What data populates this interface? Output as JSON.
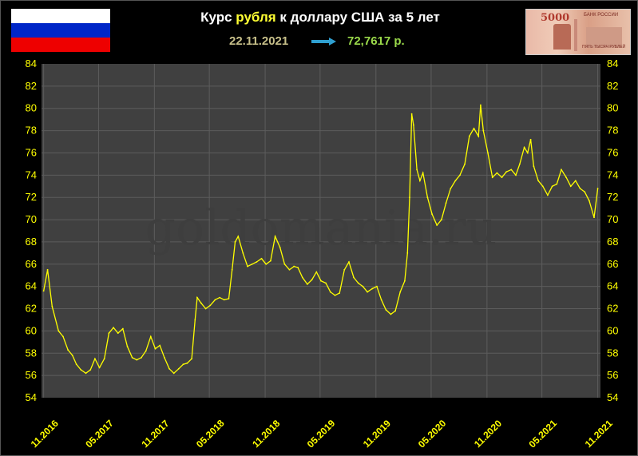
{
  "header": {
    "title_prefix": "Курс ",
    "title_highlight": "рубля",
    "title_suffix": " к доллару США за 5 лет",
    "date": "22.11.2021",
    "value": "72,7617 р."
  },
  "flag_colors": [
    "#ffffff",
    "#0026c8",
    "#ee0000"
  ],
  "banknote": {
    "denomination": "5000",
    "bank_text": "БАНК РОССИИ",
    "small_text": "ПЯТЬ ТЫСЯЧ РУБЛЕЙ"
  },
  "watermark": "goldomania.ru",
  "chart_data": {
    "type": "line",
    "title": "Курс рубля к доллару США за 5 лет",
    "ylim": [
      54,
      84
    ],
    "yticks": [
      54,
      56,
      58,
      60,
      62,
      64,
      66,
      68,
      70,
      72,
      74,
      76,
      78,
      80,
      82,
      84
    ],
    "xticks": [
      "11.2016",
      "05.2017",
      "11.2017",
      "05.2018",
      "11.2018",
      "05.2019",
      "11.2019",
      "05.2020",
      "11.2020",
      "05.2021",
      "11.2021"
    ],
    "grid": true,
    "line_color": "#ffff00",
    "series": [
      {
        "x": [
          "2016-11-22",
          "2016-12-05",
          "2016-12-20",
          "2017-01-10",
          "2017-01-25",
          "2017-02-10",
          "2017-02-25",
          "2017-03-10",
          "2017-03-25",
          "2017-04-10",
          "2017-04-25",
          "2017-05-10",
          "2017-05-25",
          "2017-06-10",
          "2017-06-25",
          "2017-07-10",
          "2017-07-25",
          "2017-08-10",
          "2017-08-25",
          "2017-09-10",
          "2017-09-25",
          "2017-10-10",
          "2017-10-25",
          "2017-11-10",
          "2017-11-25",
          "2017-12-10",
          "2017-12-25",
          "2018-01-10",
          "2018-01-25",
          "2018-02-10",
          "2018-02-25",
          "2018-03-10",
          "2018-03-25",
          "2018-04-05",
          "2018-04-12",
          "2018-04-25",
          "2018-05-10",
          "2018-05-25",
          "2018-06-10",
          "2018-06-25",
          "2018-07-10",
          "2018-07-25",
          "2018-08-05",
          "2018-08-15",
          "2018-08-25",
          "2018-09-10",
          "2018-09-25",
          "2018-10-10",
          "2018-10-25",
          "2018-11-10",
          "2018-11-25",
          "2018-12-10",
          "2018-12-25",
          "2019-01-10",
          "2019-01-25",
          "2019-02-10",
          "2019-02-25",
          "2019-03-10",
          "2019-03-25",
          "2019-04-10",
          "2019-04-25",
          "2019-05-10",
          "2019-05-25",
          "2019-06-10",
          "2019-06-25",
          "2019-07-10",
          "2019-07-25",
          "2019-08-10",
          "2019-08-25",
          "2019-09-10",
          "2019-09-25",
          "2019-10-10",
          "2019-10-25",
          "2019-11-10",
          "2019-11-25",
          "2019-12-10",
          "2019-12-25",
          "2020-01-10",
          "2020-01-25",
          "2020-02-10",
          "2020-02-25",
          "2020-03-05",
          "2020-03-12",
          "2020-03-19",
          "2020-03-25",
          "2020-04-05",
          "2020-04-15",
          "2020-04-25",
          "2020-05-10",
          "2020-05-25",
          "2020-06-10",
          "2020-06-25",
          "2020-07-10",
          "2020-07-25",
          "2020-08-10",
          "2020-08-25",
          "2020-09-10",
          "2020-09-25",
          "2020-10-10",
          "2020-10-25",
          "2020-11-01",
          "2020-11-10",
          "2020-11-25",
          "2020-12-10",
          "2020-12-25",
          "2021-01-10",
          "2021-01-25",
          "2021-02-10",
          "2021-02-25",
          "2021-03-10",
          "2021-03-25",
          "2021-04-05",
          "2021-04-15",
          "2021-04-25",
          "2021-05-10",
          "2021-05-25",
          "2021-06-10",
          "2021-06-25",
          "2021-07-10",
          "2021-07-25",
          "2021-08-10",
          "2021-08-25",
          "2021-09-10",
          "2021-09-25",
          "2021-10-10",
          "2021-10-25",
          "2021-11-10",
          "2021-11-22"
        ],
        "values": [
          63.6,
          65.5,
          62.2,
          60.0,
          59.5,
          58.3,
          57.8,
          57.0,
          56.5,
          56.2,
          56.5,
          57.5,
          56.7,
          57.5,
          59.8,
          60.3,
          59.8,
          60.2,
          58.6,
          57.6,
          57.4,
          57.6,
          58.2,
          59.5,
          58.4,
          58.7,
          57.6,
          56.6,
          56.2,
          56.6,
          57.0,
          57.1,
          57.5,
          61.0,
          63.0,
          62.5,
          62.0,
          62.3,
          62.8,
          63.0,
          62.8,
          62.9,
          65.5,
          68.0,
          68.5,
          67.0,
          65.8,
          66.0,
          66.2,
          66.5,
          66.0,
          66.3,
          68.5,
          67.5,
          66.0,
          65.5,
          65.8,
          65.7,
          64.8,
          64.2,
          64.6,
          65.3,
          64.5,
          64.3,
          63.5,
          63.2,
          63.4,
          65.5,
          66.2,
          64.8,
          64.3,
          64.0,
          63.5,
          63.8,
          64.0,
          62.8,
          61.9,
          61.5,
          61.8,
          63.5,
          64.5,
          67.0,
          72.0,
          79.5,
          78.5,
          74.5,
          73.5,
          74.2,
          72.0,
          70.5,
          69.5,
          70.0,
          71.5,
          72.8,
          73.5,
          74.0,
          75.0,
          77.5,
          78.2,
          77.5,
          80.3,
          78.0,
          76.0,
          73.8,
          74.2,
          73.8,
          74.3,
          74.5,
          74.0,
          75.0,
          76.5,
          76.0,
          77.2,
          74.8,
          73.5,
          73.0,
          72.2,
          73.0,
          73.2,
          74.5,
          73.8,
          73.0,
          73.5,
          72.8,
          72.5,
          71.7,
          70.2,
          72.8
        ]
      }
    ]
  }
}
